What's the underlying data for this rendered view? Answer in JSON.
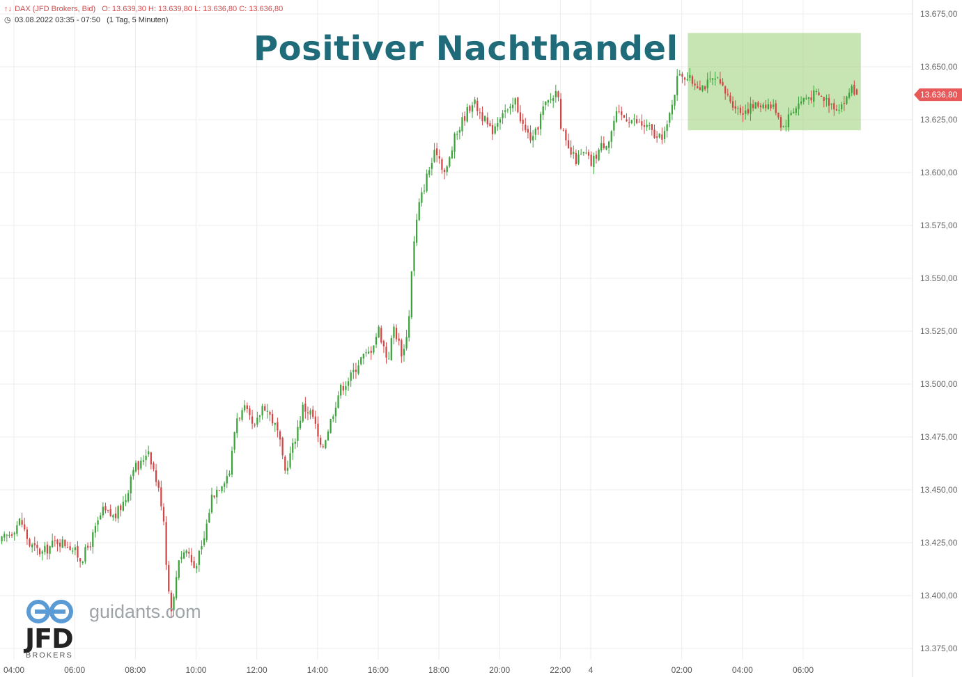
{
  "header": {
    "instrument": "DAX (JFD Brokers, Bid)",
    "ohlc": "O: 13.639,30  H: 13.639,80  L: 13.636,80  C: 13.636,80",
    "range": "03.08.2022 03:35 - 07:50",
    "interval": "(1 Tag, 5 Minuten)"
  },
  "annotation": {
    "title": "Positiver Nachthandel",
    "highlight_color": "#a9d68a"
  },
  "watermark": {
    "site": "guidants.com",
    "brand": "JFD",
    "brand_sub": "BROKERS"
  },
  "colors": {
    "up": "#3aa33a",
    "down": "#d24545",
    "grid": "#ececec",
    "price_tag": "#e85a5a"
  },
  "chart_data": {
    "type": "candlestick",
    "instrument": "DAX",
    "interval": "5 Minuten",
    "y_ticks": [
      "13.675,00",
      "13.650,00",
      "13.625,00",
      "13.600,00",
      "13.575,00",
      "13.550,00",
      "13.525,00",
      "13.500,00",
      "13.475,00",
      "13.450,00",
      "13.425,00",
      "13.400,00",
      "13.375,00"
    ],
    "ylim": [
      13370,
      13680
    ],
    "x_ticks": [
      "04:00",
      "06:00",
      "08:00",
      "10:00",
      "12:00",
      "14:00",
      "16:00",
      "18:00",
      "20:00",
      "22:00",
      "4",
      "02:00",
      "04:00",
      "06:00"
    ],
    "x_tick_hours": [
      4,
      6,
      8,
      10,
      12,
      14,
      16,
      18,
      20,
      22,
      23,
      26,
      28,
      30
    ],
    "xlim_hours": [
      3.6,
      32.7
    ],
    "last_price": 13636.8,
    "last_price_label": "13.636,80",
    "ohlc": {
      "open": 13639.3,
      "high": 13639.8,
      "low": 13636.8,
      "close": 13636.8
    },
    "highlight": {
      "from_hour": 26.2,
      "to_hour": 31.9,
      "low": 13620,
      "high": 13666
    },
    "price_path": [
      [
        3.6,
        13425
      ],
      [
        4.0,
        13430
      ],
      [
        4.3,
        13436
      ],
      [
        4.6,
        13424
      ],
      [
        5.0,
        13420
      ],
      [
        5.5,
        13426
      ],
      [
        5.9,
        13424
      ],
      [
        6.3,
        13417
      ],
      [
        6.6,
        13425
      ],
      [
        7.0,
        13440
      ],
      [
        7.4,
        13437
      ],
      [
        7.8,
        13447
      ],
      [
        8.0,
        13462
      ],
      [
        8.2,
        13460
      ],
      [
        8.5,
        13470
      ],
      [
        8.8,
        13453
      ],
      [
        9.0,
        13440
      ],
      [
        9.15,
        13405
      ],
      [
        9.3,
        13392
      ],
      [
        9.5,
        13418
      ],
      [
        9.8,
        13422
      ],
      [
        10.0,
        13413
      ],
      [
        10.3,
        13423
      ],
      [
        10.6,
        13447
      ],
      [
        10.9,
        13453
      ],
      [
        11.2,
        13459
      ],
      [
        11.4,
        13484
      ],
      [
        11.7,
        13488
      ],
      [
        12.0,
        13478
      ],
      [
        12.3,
        13491
      ],
      [
        12.6,
        13483
      ],
      [
        12.8,
        13476
      ],
      [
        13.0,
        13458
      ],
      [
        13.3,
        13472
      ],
      [
        13.6,
        13489
      ],
      [
        13.9,
        13486
      ],
      [
        14.0,
        13481
      ],
      [
        14.2,
        13468
      ],
      [
        14.5,
        13482
      ],
      [
        14.8,
        13497
      ],
      [
        15.2,
        13504
      ],
      [
        15.5,
        13512
      ],
      [
        15.8,
        13515
      ],
      [
        16.1,
        13526
      ],
      [
        16.4,
        13511
      ],
      [
        16.6,
        13527
      ],
      [
        16.9,
        13513
      ],
      [
        17.1,
        13532
      ],
      [
        17.2,
        13559
      ],
      [
        17.4,
        13583
      ],
      [
        17.7,
        13599
      ],
      [
        18.0,
        13611
      ],
      [
        18.3,
        13599
      ],
      [
        18.6,
        13616
      ],
      [
        18.9,
        13626
      ],
      [
        19.2,
        13634
      ],
      [
        19.5,
        13627
      ],
      [
        19.8,
        13619
      ],
      [
        20.2,
        13630
      ],
      [
        20.4,
        13628
      ],
      [
        20.6,
        13634
      ],
      [
        20.9,
        13620
      ],
      [
        21.2,
        13615
      ],
      [
        21.5,
        13630
      ],
      [
        21.9,
        13637
      ],
      [
        22.0,
        13641
      ],
      [
        22.1,
        13623
      ],
      [
        22.3,
        13611
      ],
      [
        22.6,
        13606
      ],
      [
        22.9,
        13609
      ],
      [
        23.1,
        13604
      ],
      [
        23.4,
        13612
      ],
      [
        23.7,
        13616
      ],
      [
        23.9,
        13627
      ],
      [
        24.3,
        13626
      ],
      [
        24.7,
        13623
      ],
      [
        25.0,
        13621
      ],
      [
        25.3,
        13615
      ],
      [
        25.6,
        13621
      ],
      [
        25.8,
        13636
      ],
      [
        26.0,
        13648
      ],
      [
        26.4,
        13643
      ],
      [
        26.8,
        13641
      ],
      [
        27.2,
        13644
      ],
      [
        27.6,
        13636
      ],
      [
        28.0,
        13629
      ],
      [
        28.4,
        13631
      ],
      [
        28.8,
        13633
      ],
      [
        29.2,
        13630
      ],
      [
        29.4,
        13621
      ],
      [
        29.7,
        13629
      ],
      [
        30.1,
        13635
      ],
      [
        30.5,
        13637
      ],
      [
        30.9,
        13634
      ],
      [
        31.2,
        13631
      ],
      [
        31.5,
        13634
      ],
      [
        31.7,
        13642
      ],
      [
        31.8,
        13636.8
      ]
    ],
    "segment_breaks_hours": [
      25.85
    ]
  }
}
